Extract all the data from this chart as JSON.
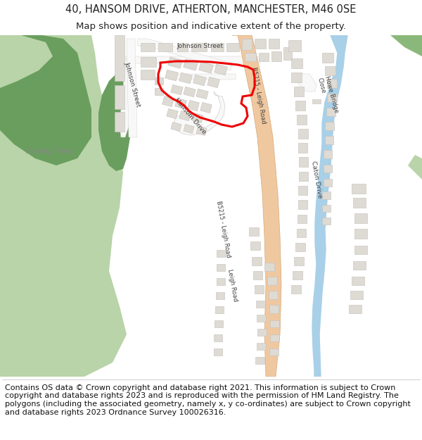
{
  "title_line1": "40, HANSOM DRIVE, ATHERTON, MANCHESTER, M46 0SE",
  "title_line2": "Map shows position and indicative extent of the property.",
  "title_fontsize": 10.5,
  "subtitle_fontsize": 9.5,
  "footer_text": "Contains OS data © Crown copyright and database right 2021. This information is subject to Crown copyright and database rights 2023 and is reproduced with the permission of HM Land Registry. The polygons (including the associated geometry, namely x, y co-ordinates) are subject to Crown copyright and database rights 2023 Ordnance Survey 100026316.",
  "footer_fontsize": 8.0,
  "green_dark": "#6a9e5e",
  "green_mid": "#8ab87a",
  "green_light": "#b8d4a8",
  "road_orange": "#f0c8a0",
  "road_orange_edge": "#d4a878",
  "building_color": "#dedad4",
  "building_edge": "#c4c0ba",
  "water_blue": "#a8d0e8",
  "white_road": "#f8f8f8",
  "white_road_edge": "#d0ceca",
  "red_polygon": "#ee0000",
  "map_bg": "#f5f3ef",
  "text_color": "#222222",
  "road_text": "#444444"
}
